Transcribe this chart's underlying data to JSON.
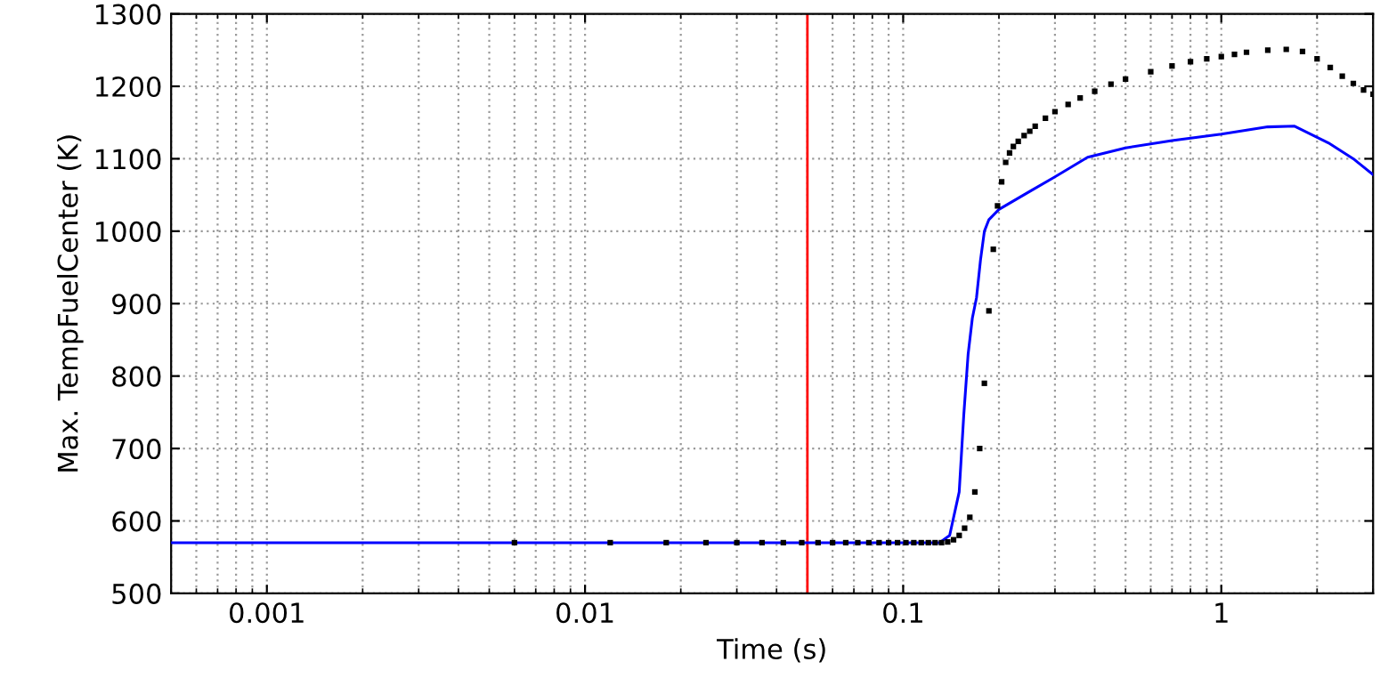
{
  "chart_data": {
    "type": "line",
    "xlabel": "Time (s)",
    "ylabel": "Max. TempFuelCenter (K)",
    "log": "x",
    "grid": true,
    "xlim": [
      0.0005,
      3
    ],
    "xticks": [
      0.001,
      0.01,
      0.1,
      1
    ],
    "ylim": [
      500,
      1300
    ],
    "yticks": [
      500,
      600,
      700,
      800,
      900,
      1000,
      1100,
      1200,
      1300
    ],
    "ref_lines": [
      {
        "axis": "x",
        "value": 0.05,
        "color": "#ff0000"
      }
    ],
    "series": [
      {
        "color": "#0000ff",
        "x": [
          0.0005,
          0.13,
          0.14,
          0.15,
          0.155,
          0.16,
          0.165,
          0.17,
          0.175,
          0.18,
          0.186,
          0.2,
          0.25,
          0.3,
          0.38,
          0.5,
          0.7,
          1.0,
          1.4,
          1.7,
          2.17,
          2.6,
          3.0
        ],
        "values": [
          570,
          570,
          580,
          640,
          745,
          830,
          880,
          908,
          960,
          1000,
          1016,
          1030,
          1055,
          1075,
          1102,
          1115,
          1125,
          1134,
          1144,
          1145,
          1122,
          1100,
          1078
        ]
      },
      {
        "type": "scatter",
        "marker": "square",
        "color": "#000000",
        "x": [
          0.006,
          0.012,
          0.018,
          0.024,
          0.03,
          0.036,
          0.042,
          0.048,
          0.054,
          0.06,
          0.066,
          0.072,
          0.078,
          0.084,
          0.09,
          0.096,
          0.102,
          0.108,
          0.114,
          0.12,
          0.126,
          0.132,
          0.138,
          0.144,
          0.15,
          0.156,
          0.162,
          0.168,
          0.174,
          0.18,
          0.186,
          0.192,
          0.198,
          0.204,
          0.21,
          0.216,
          0.222,
          0.23,
          0.24,
          0.25,
          0.26,
          0.28,
          0.3,
          0.33,
          0.36,
          0.4,
          0.45,
          0.5,
          0.6,
          0.7,
          0.8,
          0.9,
          1.0,
          1.1,
          1.2,
          1.4,
          1.6,
          1.8,
          2.0,
          2.2,
          2.4,
          2.6,
          2.8,
          3.0
        ],
        "values": [
          570,
          570,
          570,
          570,
          570,
          570,
          570,
          570,
          570,
          570,
          570,
          570,
          570,
          570,
          570,
          570,
          570,
          570,
          570,
          570,
          570,
          570,
          571,
          574,
          580,
          590,
          605,
          640,
          700,
          790,
          890,
          975,
          1035,
          1068,
          1095,
          1108,
          1117,
          1124,
          1132,
          1138,
          1145,
          1156,
          1165,
          1175,
          1184,
          1193,
          1203,
          1210,
          1220,
          1228,
          1234,
          1238,
          1241,
          1244,
          1247,
          1250,
          1251,
          1248,
          1238,
          1226,
          1214,
          1204,
          1195,
          1189
        ]
      }
    ]
  }
}
